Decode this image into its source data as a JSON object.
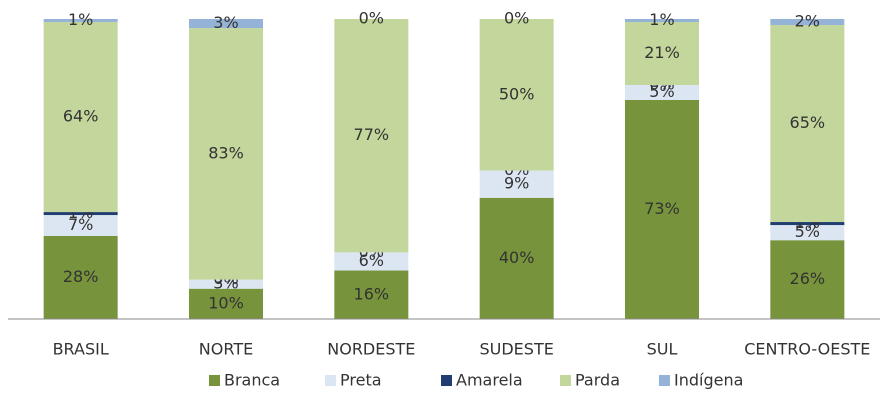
{
  "chart_data": {
    "type": "stacked_bar_100",
    "categories": [
      "BRASIL",
      "NORTE",
      "NORDESTE",
      "SUDESTE",
      "SUL",
      "CENTRO-OESTE"
    ],
    "series": [
      {
        "name": "Branca",
        "color": "#77933c",
        "values": [
          28,
          10,
          16,
          40,
          73,
          26
        ],
        "value_labels": [
          "28%",
          "10%",
          "16%",
          "40%",
          "73%",
          "26%"
        ]
      },
      {
        "name": "Preta",
        "color": "#dce6f2",
        "values": [
          7,
          3,
          6,
          9,
          5,
          5
        ],
        "value_labels": [
          "7%",
          "3%",
          "6%",
          "9%",
          "5%",
          "5%"
        ]
      },
      {
        "name": "Amarela",
        "color": "#1f3d6e",
        "values": [
          1,
          0,
          0,
          0,
          0,
          1
        ],
        "value_labels": [
          "1%",
          "0%",
          "0%",
          "0%",
          "0%",
          "1%"
        ]
      },
      {
        "name": "Parda",
        "color": "#c3d69b",
        "values": [
          64,
          83,
          77,
          50,
          21,
          65
        ],
        "value_labels": [
          "64%",
          "83%",
          "77%",
          "50%",
          "21%",
          "65%"
        ]
      },
      {
        "name": "Indígena",
        "color": "#95b3d7",
        "values": [
          1,
          3,
          0,
          0,
          1,
          2
        ],
        "value_labels": [
          "1%",
          "3%",
          "0%",
          "0%",
          "1%",
          "2%"
        ]
      }
    ],
    "legend": "bottom"
  }
}
